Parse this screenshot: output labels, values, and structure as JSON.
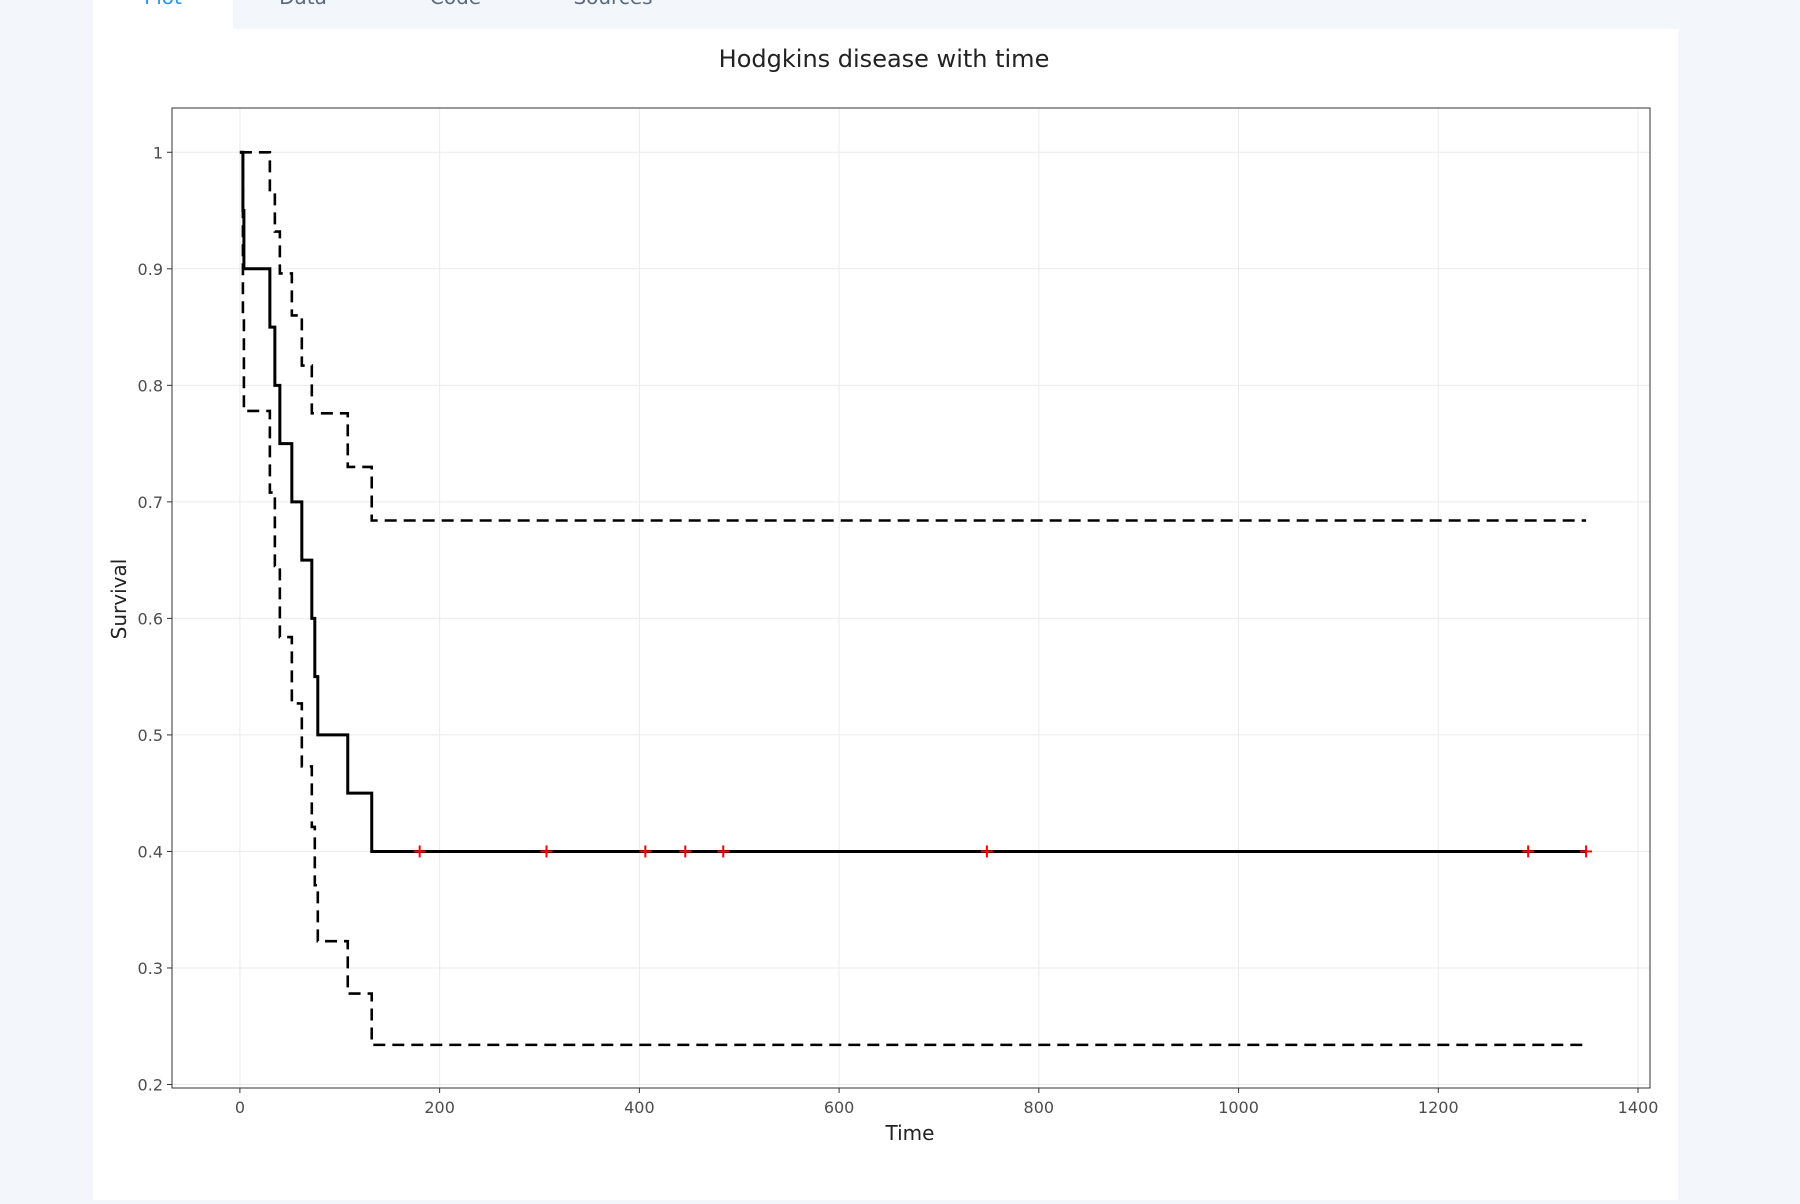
{
  "tabs": [
    {
      "label": "Plot",
      "active": true
    },
    {
      "label": "Data",
      "active": false
    },
    {
      "label": "Code",
      "active": false
    },
    {
      "label": "Sources",
      "active": false
    }
  ],
  "colors": {
    "accent": "#2196f3",
    "line": "#000000",
    "censor_mark": "#ff0000",
    "grid": "#ebebeb",
    "panel_border": "#333333"
  },
  "chart_data": {
    "type": "line",
    "title": "Hodgkins disease with time",
    "xlabel": "Time",
    "ylabel": "Survival",
    "xlim": [
      -68,
      1412
    ],
    "ylim": [
      0.197,
      1.038
    ],
    "xticks": [
      0,
      200,
      400,
      600,
      800,
      1000,
      1200,
      1400
    ],
    "yticks": [
      0.2,
      0.3,
      0.4,
      0.5,
      0.6,
      0.7,
      0.8,
      0.9,
      1
    ],
    "ytick_labels": [
      "0.2",
      "0.3",
      "0.4",
      "0.5",
      "0.6",
      "0.7",
      "0.8",
      "0.9",
      "1"
    ],
    "grid": true,
    "legend": "none",
    "series": [
      {
        "style": "step-solid",
        "x": [
          0,
          3,
          4,
          30,
          35,
          40,
          52,
          62,
          72,
          75,
          78,
          108,
          132,
          1348
        ],
        "y": [
          1.0,
          0.95,
          0.9,
          0.85,
          0.8,
          0.75,
          0.7,
          0.65,
          0.6,
          0.55,
          0.5,
          0.45,
          0.4,
          0.4
        ]
      },
      {
        "style": "step-dashed",
        "x": [
          0,
          3,
          4,
          30,
          35,
          40,
          52,
          62,
          72,
          75,
          78,
          108,
          132,
          1348
        ],
        "y": [
          1.0,
          1.0,
          1.0,
          0.966,
          0.932,
          0.896,
          0.86,
          0.817,
          0.776,
          0.776,
          0.776,
          0.73,
          0.684,
          0.684
        ]
      },
      {
        "style": "step-dashed",
        "x": [
          0,
          3,
          4,
          30,
          35,
          40,
          52,
          62,
          72,
          75,
          78,
          108,
          132,
          1348
        ],
        "y": [
          1.0,
          0.86,
          0.778,
          0.708,
          0.645,
          0.584,
          0.527,
          0.473,
          0.421,
          0.371,
          0.323,
          0.278,
          0.234,
          0.234
        ]
      }
    ],
    "censor_points": {
      "x": [
        180,
        307,
        406,
        446,
        484,
        748,
        1290,
        1348
      ],
      "y": [
        0.4,
        0.4,
        0.4,
        0.4,
        0.4,
        0.4,
        0.4,
        0.4
      ]
    }
  }
}
